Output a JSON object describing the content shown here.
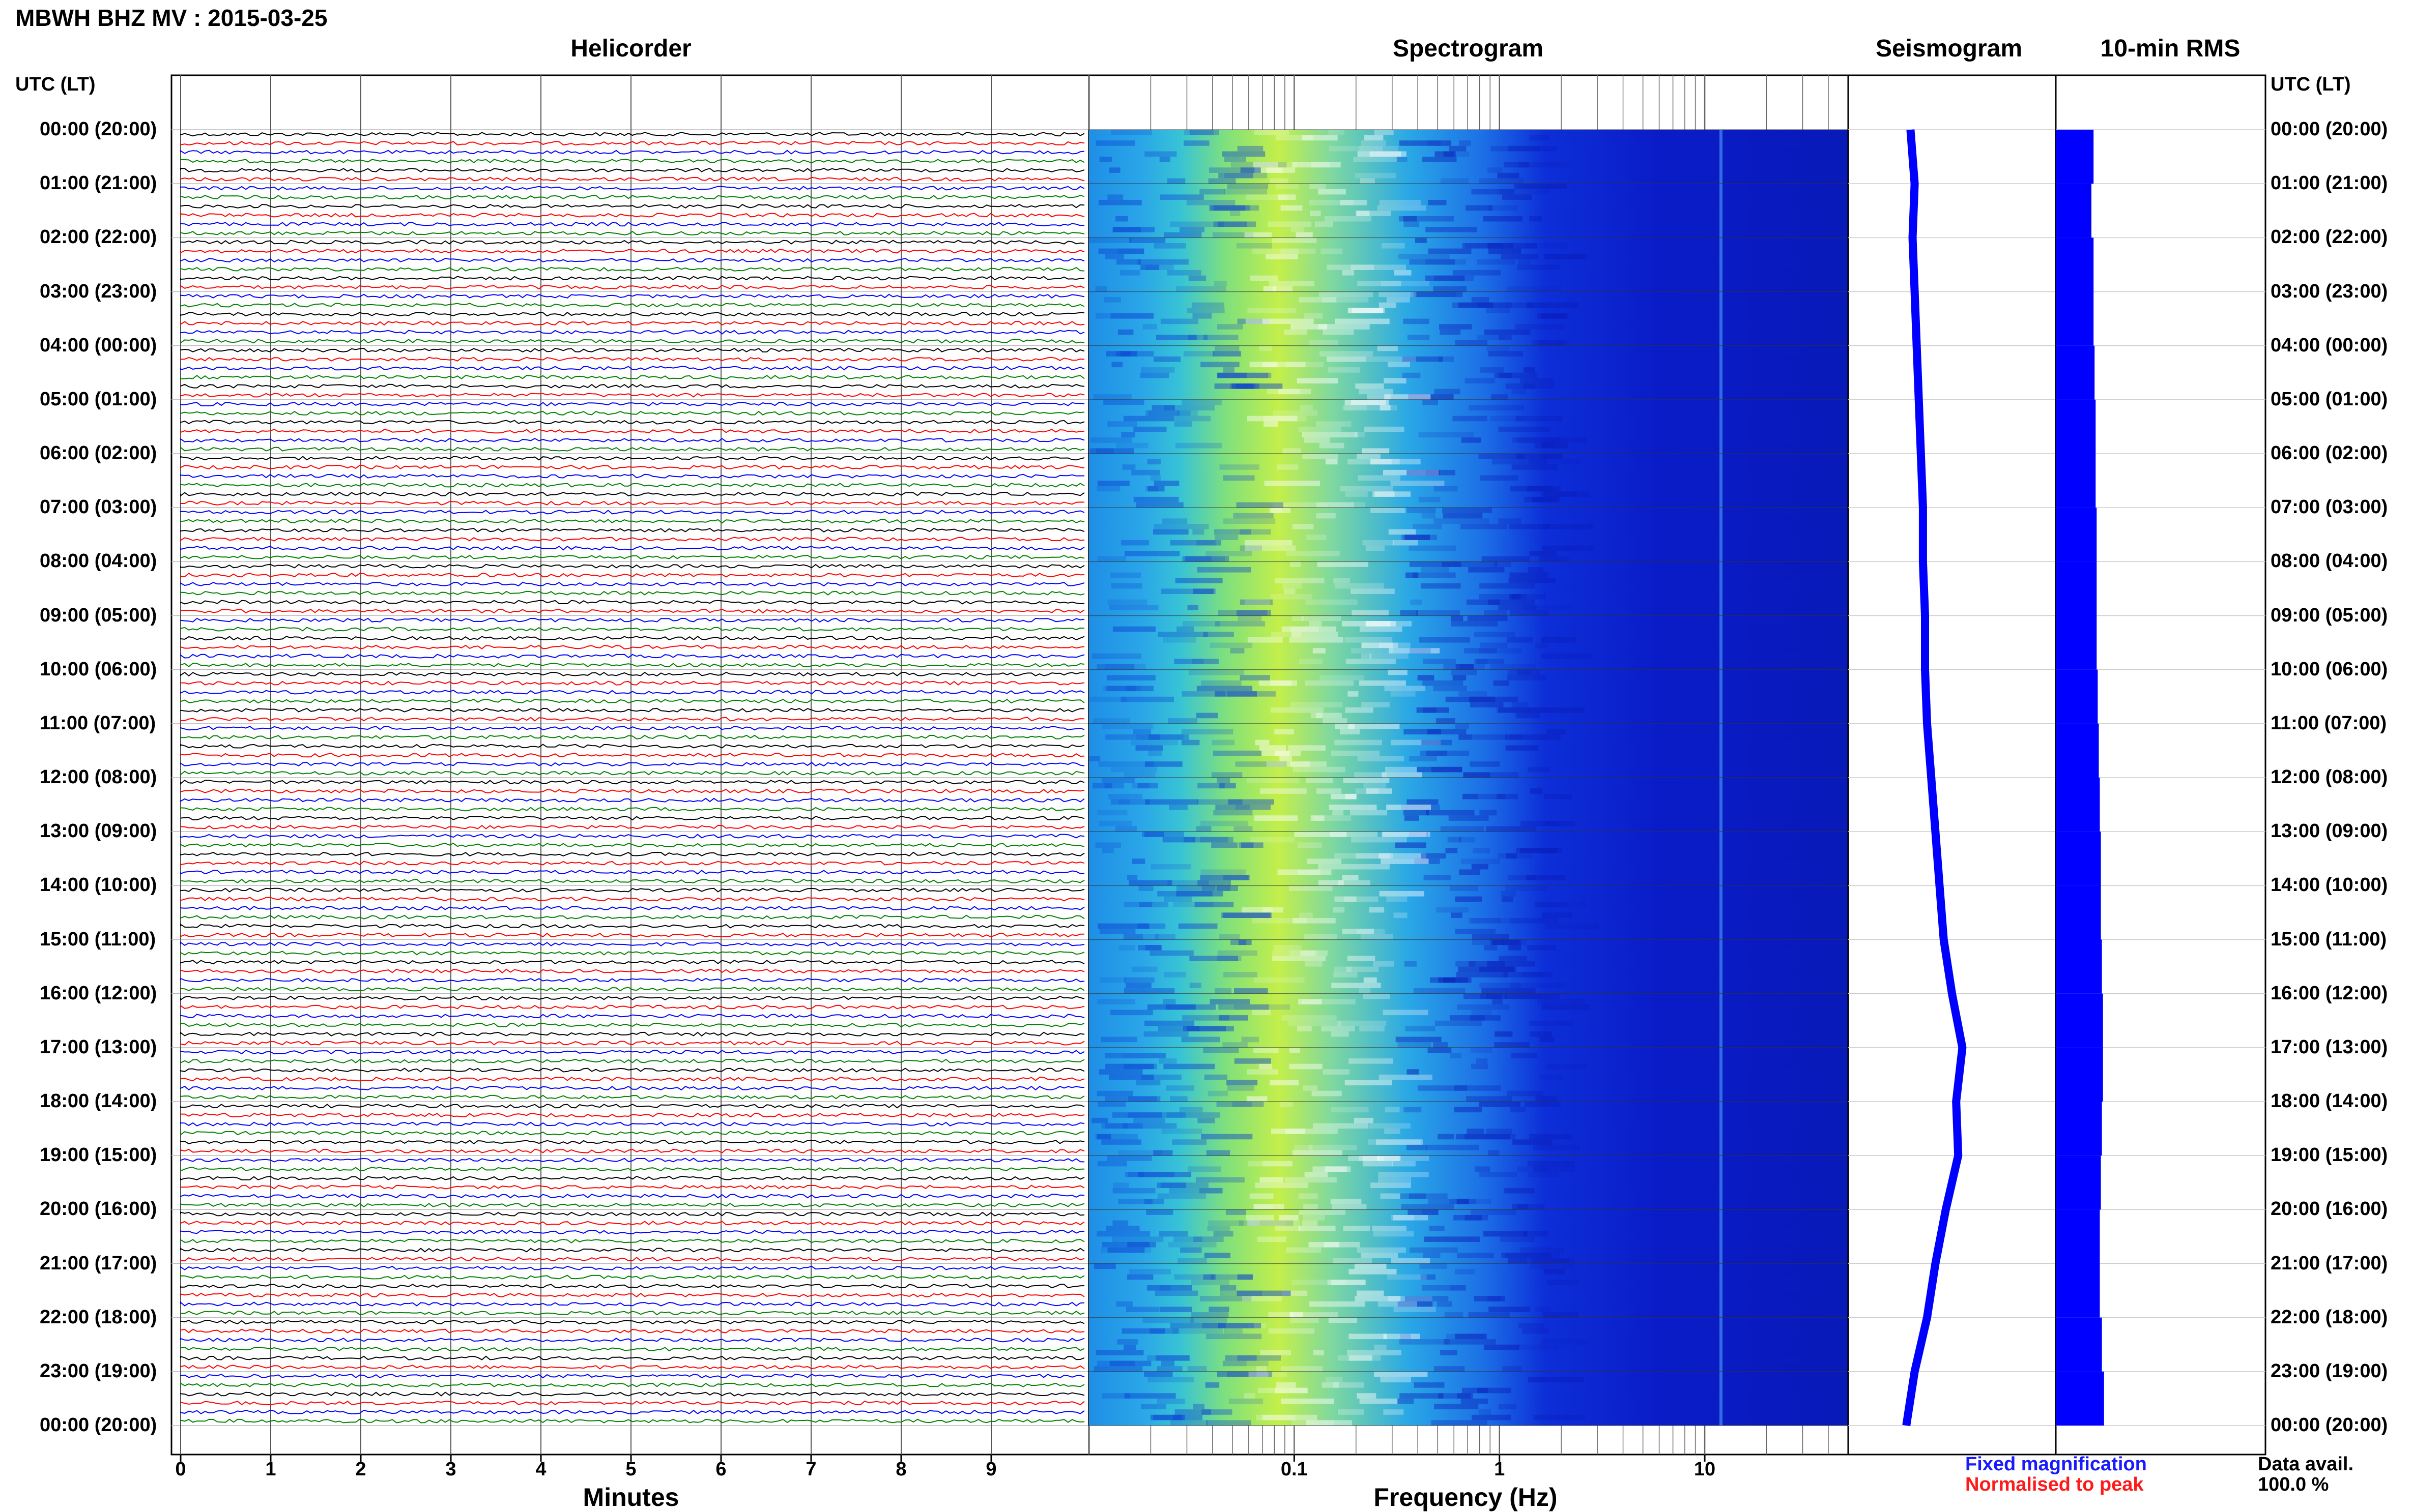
{
  "header": {
    "title": "MBWH BHZ MV : 2015-03-25",
    "panels": [
      "Helicorder",
      "Spectrogram",
      "Seismogram",
      "10-min RMS"
    ],
    "time_axis_header": "UTC (LT)"
  },
  "legend": {
    "fixed": "Fixed magnification",
    "normalised": "Normalised to peak",
    "fixed_color": "#1a1aff",
    "normalised_color": "#ff1a1a"
  },
  "availability": {
    "label": "Data avail.",
    "value": "100.0 %"
  },
  "colors": {
    "trace_cycle": [
      "#000000",
      "#ff0000",
      "#0000ff",
      "#008000"
    ],
    "spectrogram_low": "#00008b",
    "spectrogram_high": "#ffff00",
    "seismogram": "#0000ff",
    "rms": "#0000ff"
  },
  "chart_data": [
    {
      "type": "line",
      "panel": "Helicorder",
      "title": "Helicorder",
      "xlabel": "Minutes",
      "x_ticks": [
        "0",
        "1",
        "2",
        "3",
        "4",
        "5",
        "6",
        "7",
        "8",
        "9"
      ],
      "xlim": [
        0,
        10
      ],
      "time_labels": [
        "00:00 (20:00)",
        "01:00 (21:00)",
        "02:00 (22:00)",
        "03:00 (23:00)",
        "04:00 (00:00)",
        "05:00 (01:00)",
        "06:00 (02:00)",
        "07:00 (03:00)",
        "08:00 (04:00)",
        "09:00 (05:00)",
        "10:00 (06:00)",
        "11:00 (07:00)",
        "12:00 (08:00)",
        "13:00 (09:00)",
        "14:00 (10:00)",
        "15:00 (11:00)",
        "16:00 (12:00)",
        "17:00 (13:00)",
        "18:00 (14:00)",
        "19:00 (15:00)",
        "20:00 (16:00)",
        "21:00 (17:00)",
        "22:00 (18:00)",
        "23:00 (19:00)",
        "00:00 (20:00)"
      ],
      "traces_per_hour": 6,
      "hours": 24
    },
    {
      "type": "heatmap",
      "panel": "Spectrogram",
      "title": "Spectrogram",
      "xlabel": "Frequency (Hz)",
      "x_scale": "log",
      "x_ticks": [
        "0.1",
        "1",
        "10"
      ],
      "x_tick_values": [
        0.1,
        1,
        10
      ],
      "xlim": [
        0.01,
        50
      ]
    },
    {
      "type": "line",
      "panel": "Seismogram",
      "title": "Seismogram",
      "hours": [
        0,
        1,
        2,
        3,
        4,
        5,
        6,
        7,
        8,
        9,
        10,
        11,
        12,
        13,
        14,
        15,
        16,
        17,
        18,
        19,
        20,
        21,
        22,
        23,
        24
      ],
      "offset": [
        0.3,
        0.32,
        0.31,
        0.32,
        0.33,
        0.34,
        0.35,
        0.36,
        0.36,
        0.37,
        0.37,
        0.38,
        0.4,
        0.42,
        0.44,
        0.46,
        0.5,
        0.55,
        0.52,
        0.53,
        0.47,
        0.42,
        0.38,
        0.32,
        0.28
      ]
    },
    {
      "type": "bar",
      "panel": "10-min RMS",
      "title": "10-min RMS",
      "hours": [
        0,
        1,
        2,
        3,
        4,
        5,
        6,
        7,
        8,
        9,
        10,
        11,
        12,
        13,
        14,
        15,
        16,
        17,
        18,
        19,
        20,
        21,
        22,
        23
      ],
      "values": [
        0.36,
        0.34,
        0.36,
        0.36,
        0.37,
        0.38,
        0.38,
        0.39,
        0.39,
        0.39,
        0.4,
        0.41,
        0.42,
        0.43,
        0.43,
        0.44,
        0.45,
        0.45,
        0.44,
        0.43,
        0.42,
        0.42,
        0.44,
        0.46
      ]
    }
  ]
}
